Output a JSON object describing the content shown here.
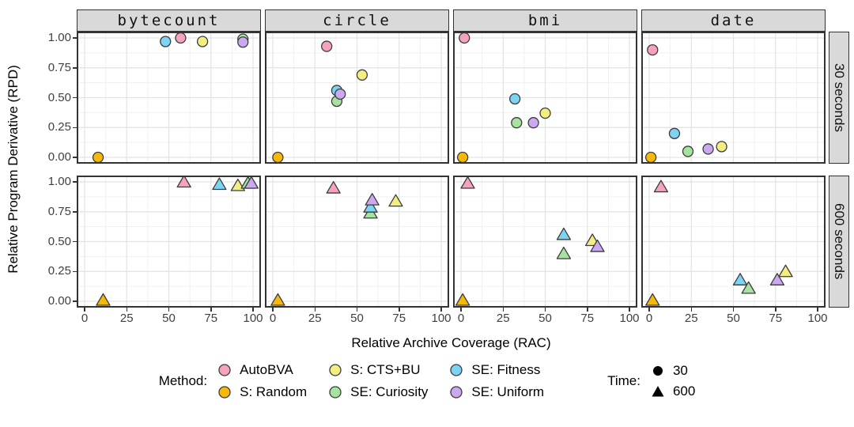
{
  "figure": {
    "y_axis_title": "Relative Program Derivative (RPD)",
    "x_axis_title": "Relative Archive Coverage (RAC)"
  },
  "legend": {
    "method_label": "Method:",
    "time_label": "Time:",
    "time_items": [
      {
        "label": "30",
        "shape": "circle"
      },
      {
        "label": "600",
        "shape": "triangle"
      }
    ]
  },
  "chart_data": {
    "type": "scatter",
    "xlabel": "Relative Archive Coverage (RAC)",
    "ylabel": "Relative Program Derivative (RPD)",
    "xlim": [
      0,
      100
    ],
    "ylim": [
      0,
      1
    ],
    "xticks": [
      {
        "label": "0",
        "value": 0
      },
      {
        "label": "25",
        "value": 25
      },
      {
        "label": "50",
        "value": 50
      },
      {
        "label": "75",
        "value": 75
      },
      {
        "label": "100",
        "value": 100
      }
    ],
    "yticks": [
      {
        "label": "1.00",
        "value": 1.0
      },
      {
        "label": "0.75",
        "value": 0.75
      },
      {
        "label": "0.50",
        "value": 0.5
      },
      {
        "label": "0.25",
        "value": 0.25
      },
      {
        "label": "0.00",
        "value": 0.0
      }
    ],
    "facet_columns": [
      "bytecount",
      "circle",
      "bmi",
      "date"
    ],
    "facet_rows": [
      "30 seconds",
      "600 seconds"
    ],
    "grid": "major+minor",
    "marker_stroke": "#3c3c3c",
    "methods": [
      {
        "name": "AutoBVA",
        "color": "#F4A3BB"
      },
      {
        "name": "S: Random",
        "color": "#F7B80C"
      },
      {
        "name": "S: CTS+BU",
        "color": "#F3EE82"
      },
      {
        "name": "SE: Curiosity",
        "color": "#A6E3A1"
      },
      {
        "name": "SE: Fitness",
        "color": "#7CD3F2"
      },
      {
        "name": "SE: Uniform",
        "color": "#CCA8F0"
      }
    ],
    "series": [
      {
        "facet_col": "bytecount",
        "facet_row": "30 seconds",
        "shape": "circle",
        "points": [
          {
            "method": "S: Random",
            "x": 8,
            "y": 0.0
          },
          {
            "method": "SE: Fitness",
            "x": 48,
            "y": 0.97
          },
          {
            "method": "AutoBVA",
            "x": 57,
            "y": 1.0
          },
          {
            "method": "S: CTS+BU",
            "x": 70,
            "y": 0.97
          },
          {
            "method": "SE: Curiosity",
            "x": 94,
            "y": 0.99
          },
          {
            "method": "SE: Uniform",
            "x": 94,
            "y": 0.965
          }
        ]
      },
      {
        "facet_col": "circle",
        "facet_row": "30 seconds",
        "shape": "circle",
        "points": [
          {
            "method": "S: Random",
            "x": 3,
            "y": 0.0
          },
          {
            "method": "AutoBVA",
            "x": 32,
            "y": 0.93
          },
          {
            "method": "S: CTS+BU",
            "x": 53,
            "y": 0.69
          },
          {
            "method": "SE: Fitness",
            "x": 38,
            "y": 0.56
          },
          {
            "method": "SE: Curiosity",
            "x": 38,
            "y": 0.47
          },
          {
            "method": "SE: Uniform",
            "x": 40,
            "y": 0.53
          }
        ]
      },
      {
        "facet_col": "bmi",
        "facet_row": "30 seconds",
        "shape": "circle",
        "points": [
          {
            "method": "S: Random",
            "x": 1,
            "y": 0.0
          },
          {
            "method": "AutoBVA",
            "x": 2,
            "y": 1.0
          },
          {
            "method": "SE: Fitness",
            "x": 32,
            "y": 0.49
          },
          {
            "method": "S: CTS+BU",
            "x": 50,
            "y": 0.37
          },
          {
            "method": "SE: Curiosity",
            "x": 33,
            "y": 0.29
          },
          {
            "method": "SE: Uniform",
            "x": 43,
            "y": 0.29
          }
        ]
      },
      {
        "facet_col": "date",
        "facet_row": "30 seconds",
        "shape": "circle",
        "points": [
          {
            "method": "S: Random",
            "x": 1,
            "y": 0.0
          },
          {
            "method": "AutoBVA",
            "x": 2,
            "y": 0.9
          },
          {
            "method": "SE: Fitness",
            "x": 15,
            "y": 0.2
          },
          {
            "method": "SE: Curiosity",
            "x": 23,
            "y": 0.05
          },
          {
            "method": "SE: Uniform",
            "x": 35,
            "y": 0.07
          },
          {
            "method": "S: CTS+BU",
            "x": 43,
            "y": 0.09
          }
        ]
      },
      {
        "facet_col": "bytecount",
        "facet_row": "600 seconds",
        "shape": "triangle",
        "points": [
          {
            "method": "S: Random",
            "x": 11,
            "y": 0.01
          },
          {
            "method": "AutoBVA",
            "x": 59,
            "y": 1.0
          },
          {
            "method": "SE: Fitness",
            "x": 80,
            "y": 0.98
          },
          {
            "method": "S: CTS+BU",
            "x": 91,
            "y": 0.97
          },
          {
            "method": "SE: Curiosity",
            "x": 97,
            "y": 0.99
          },
          {
            "method": "SE: Uniform",
            "x": 99,
            "y": 0.99
          }
        ]
      },
      {
        "facet_col": "circle",
        "facet_row": "600 seconds",
        "shape": "triangle",
        "points": [
          {
            "method": "S: Random",
            "x": 3,
            "y": 0.01
          },
          {
            "method": "AutoBVA",
            "x": 36,
            "y": 0.95
          },
          {
            "method": "SE: Curiosity",
            "x": 58,
            "y": 0.74
          },
          {
            "method": "SE: Fitness",
            "x": 58,
            "y": 0.79
          },
          {
            "method": "SE: Uniform",
            "x": 59,
            "y": 0.85
          },
          {
            "method": "S: CTS+BU",
            "x": 73,
            "y": 0.84
          }
        ]
      },
      {
        "facet_col": "bmi",
        "facet_row": "600 seconds",
        "shape": "triangle",
        "points": [
          {
            "method": "S: Random",
            "x": 1,
            "y": 0.01
          },
          {
            "method": "AutoBVA",
            "x": 4,
            "y": 0.99
          },
          {
            "method": "SE: Fitness",
            "x": 61,
            "y": 0.56
          },
          {
            "method": "SE: Curiosity",
            "x": 61,
            "y": 0.4
          },
          {
            "method": "S: CTS+BU",
            "x": 78,
            "y": 0.51
          },
          {
            "method": "SE: Uniform",
            "x": 81,
            "y": 0.46
          }
        ]
      },
      {
        "facet_col": "date",
        "facet_row": "600 seconds",
        "shape": "triangle",
        "points": [
          {
            "method": "S: Random",
            "x": 2,
            "y": 0.01
          },
          {
            "method": "AutoBVA",
            "x": 7,
            "y": 0.96
          },
          {
            "method": "SE: Fitness",
            "x": 54,
            "y": 0.18
          },
          {
            "method": "SE: Curiosity",
            "x": 59,
            "y": 0.11
          },
          {
            "method": "SE: Uniform",
            "x": 76,
            "y": 0.18
          },
          {
            "method": "S: CTS+BU",
            "x": 81,
            "y": 0.25
          }
        ]
      }
    ]
  }
}
